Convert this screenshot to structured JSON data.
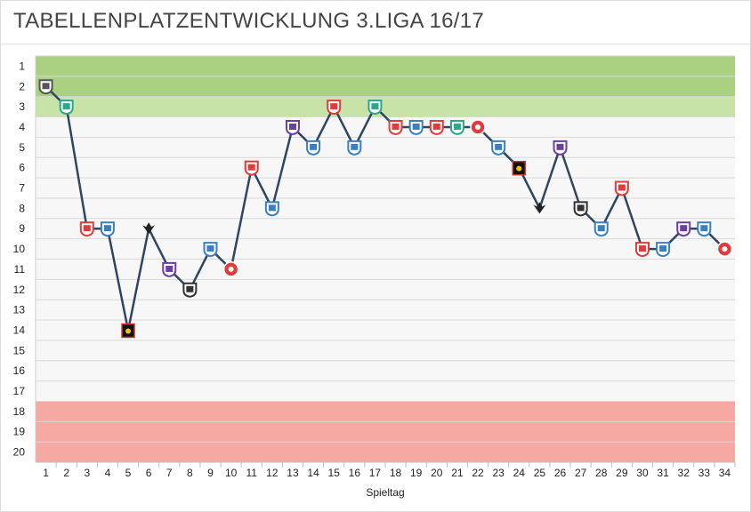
{
  "title": "TABELLENPLATZENTWICKLUNG 3.LIGA 16/17",
  "chart_data": {
    "type": "line",
    "title": "TABELLENPLATZENTWICKLUNG 3.LIGA 16/17",
    "xlabel": "Spieltag",
    "ylabel": "",
    "x": [
      1,
      2,
      3,
      4,
      5,
      6,
      7,
      8,
      9,
      10,
      11,
      12,
      13,
      14,
      15,
      16,
      17,
      18,
      19,
      20,
      21,
      22,
      23,
      24,
      25,
      26,
      27,
      28,
      29,
      30,
      31,
      32,
      33,
      34
    ],
    "y_ticks": [
      1,
      2,
      3,
      4,
      5,
      6,
      7,
      8,
      9,
      10,
      11,
      12,
      13,
      14,
      15,
      16,
      17,
      18,
      19,
      20
    ],
    "ylim": [
      20,
      1
    ],
    "y_inverted": true,
    "grid": true,
    "series": [
      {
        "values": [
          2,
          3,
          9,
          9,
          14,
          9,
          11,
          12,
          10,
          11,
          6,
          8,
          4,
          5,
          3,
          5,
          3,
          4,
          4,
          4,
          4,
          4,
          5,
          6,
          8,
          5,
          8,
          9,
          7,
          10,
          10,
          9,
          9,
          10
        ]
      }
    ],
    "bands": [
      {
        "from": 1,
        "to": 2,
        "color": "#a9d181"
      },
      {
        "from": 3,
        "to": 3,
        "color": "#c8e3a8"
      },
      {
        "from": 4,
        "to": 17,
        "color": "#f7f7f7"
      },
      {
        "from": 18,
        "to": 20,
        "color": "#f6a8a3"
      }
    ],
    "line_color": "#2f4660",
    "markers": [
      "crest-dark",
      "crest-teal",
      "crest-red",
      "crest-blue",
      "crest-black-gold",
      "eagle-black",
      "crest-purple",
      "crest-black",
      "crest-blue",
      "crest-red",
      "crest-red",
      "crest-blue",
      "crest-purple",
      "crest-blue",
      "crest-red",
      "crest-blue",
      "crest-teal",
      "crest-red",
      "crest-blue",
      "crest-red",
      "crest-teal",
      "crest-red",
      "crest-blue",
      "crest-black-gold",
      "eagle-black",
      "crest-purple",
      "crest-black",
      "crest-blue",
      "crest-red",
      "crest-red",
      "crest-blue",
      "crest-purple",
      "crest-blue",
      "crest-red"
    ]
  }
}
